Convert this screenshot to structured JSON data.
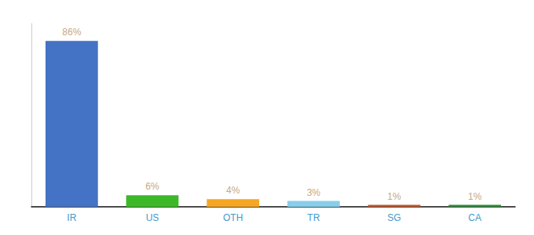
{
  "chart_data": {
    "type": "bar",
    "categories": [
      "IR",
      "US",
      "OTH",
      "TR",
      "SG",
      "CA"
    ],
    "values": [
      86,
      6,
      4,
      3,
      1,
      1
    ],
    "value_labels": [
      "86%",
      "6%",
      "4%",
      "3%",
      "1%",
      "1%"
    ],
    "colors": [
      "#4472c4",
      "#3cb928",
      "#f5a623",
      "#87ceeb",
      "#c0552b",
      "#2e8b3a"
    ],
    "ylim": [
      0,
      95
    ],
    "data_labels": true,
    "tick_labels": "x",
    "grid": false
  }
}
